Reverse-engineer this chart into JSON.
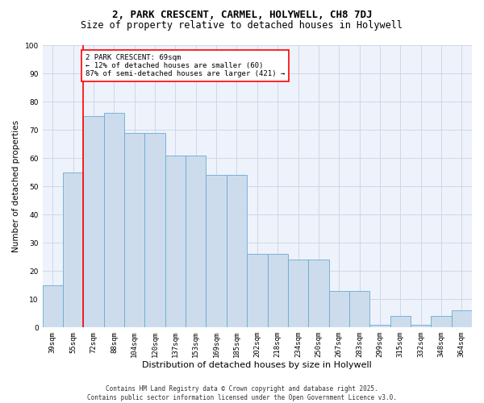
{
  "title1": "2, PARK CRESCENT, CARMEL, HOLYWELL, CH8 7DJ",
  "title2": "Size of property relative to detached houses in Holywell",
  "xlabel": "Distribution of detached houses by size in Holywell",
  "ylabel": "Number of detached properties",
  "categories": [
    "39sqm",
    "55sqm",
    "72sqm",
    "88sqm",
    "104sqm",
    "120sqm",
    "137sqm",
    "153sqm",
    "169sqm",
    "185sqm",
    "202sqm",
    "218sqm",
    "234sqm",
    "250sqm",
    "267sqm",
    "283sqm",
    "299sqm",
    "315sqm",
    "332sqm",
    "348sqm",
    "364sqm"
  ],
  "values": [
    15,
    55,
    75,
    76,
    69,
    69,
    61,
    61,
    54,
    54,
    26,
    26,
    24,
    24,
    13,
    13,
    1,
    4,
    1,
    4,
    6
  ],
  "bar_color": "#ccdcec",
  "bar_edge_color": "#6aaad4",
  "grid_color": "#ccd8ec",
  "background_color": "#eef2fa",
  "vline_color": "red",
  "annotation_text": "2 PARK CRESCENT: 69sqm\n← 12% of detached houses are smaller (60)\n87% of semi-detached houses are larger (421) →",
  "annotation_box_color": "red",
  "ylim": [
    0,
    100
  ],
  "yticks": [
    0,
    10,
    20,
    30,
    40,
    50,
    60,
    70,
    80,
    90,
    100
  ],
  "footer": "Contains HM Land Registry data © Crown copyright and database right 2025.\nContains public sector information licensed under the Open Government Licence v3.0.",
  "title1_fontsize": 9,
  "title2_fontsize": 8.5,
  "xlabel_fontsize": 8,
  "ylabel_fontsize": 7.5,
  "tick_fontsize": 6.5,
  "annotation_fontsize": 6.5,
  "footer_fontsize": 5.5
}
